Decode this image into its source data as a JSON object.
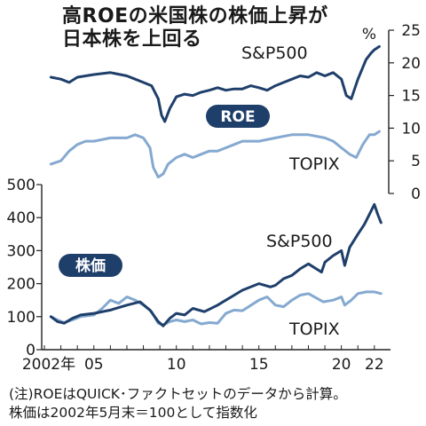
{
  "title": {
    "line1": "高ROEの米国株の株価上昇が",
    "line2": "日本株を上回る"
  },
  "colors": {
    "sp500": "#1f3f6b",
    "topix": "#85a9d0",
    "badge": "#1f3f6b",
    "axis": "#222222"
  },
  "notes": {
    "line1": "(注)ROEはQUICK･ファクトセットのデータから計算。",
    "line2": "株価は2002年5月末＝100として指数化"
  },
  "chart_data": [
    {
      "type": "line",
      "panel": "top",
      "badge": "ROE",
      "unit_label": "%",
      "y_axis_side": "right",
      "ylim": [
        0,
        25
      ],
      "y_ticks": [
        "0",
        "5",
        "10",
        "15",
        "20",
        "25"
      ],
      "series": [
        {
          "name": "S&P500",
          "x": [
            2002.4,
            2003.0,
            2003.5,
            2004.0,
            2005.0,
            2006.0,
            2007.0,
            2007.5,
            2008.0,
            2008.5,
            2008.9,
            2009.1,
            2009.3,
            2009.6,
            2010.0,
            2010.5,
            2011.0,
            2011.5,
            2012.0,
            2012.5,
            2013.0,
            2013.5,
            2014.0,
            2014.5,
            2015.0,
            2015.5,
            2016.0,
            2016.5,
            2017.0,
            2017.5,
            2018.0,
            2018.5,
            2019.0,
            2019.5,
            2020.0,
            2020.3,
            2020.6,
            2021.0,
            2021.5,
            2021.8,
            2022.0,
            2022.3
          ],
          "values": [
            17.8,
            17.5,
            17.0,
            17.8,
            18.2,
            18.5,
            18.0,
            17.5,
            17.0,
            16.5,
            14.5,
            12.0,
            11.0,
            13.0,
            14.8,
            15.2,
            15.0,
            15.5,
            15.8,
            16.2,
            15.8,
            16.0,
            16.0,
            16.5,
            16.2,
            15.8,
            16.5,
            17.0,
            17.5,
            18.0,
            17.8,
            18.5,
            18.0,
            18.5,
            17.5,
            15.0,
            14.5,
            17.5,
            20.5,
            21.5,
            22.0,
            22.5
          ]
        },
        {
          "name": "TOPIX",
          "x": [
            2002.4,
            2003.0,
            2003.5,
            2004.0,
            2004.5,
            2005.0,
            2006.0,
            2007.0,
            2007.5,
            2008.0,
            2008.4,
            2008.6,
            2008.9,
            2009.2,
            2009.5,
            2010.0,
            2010.5,
            2011.0,
            2011.5,
            2012.0,
            2012.5,
            2013.0,
            2013.5,
            2014.0,
            2015.0,
            2016.0,
            2017.0,
            2018.0,
            2019.0,
            2019.5,
            2020.0,
            2020.5,
            2020.9,
            2021.3,
            2021.7,
            2022.0,
            2022.3
          ],
          "values": [
            4.5,
            5.0,
            6.5,
            7.5,
            8.0,
            8.0,
            8.5,
            8.5,
            9.0,
            8.5,
            7.0,
            4.0,
            2.5,
            3.0,
            4.5,
            5.5,
            6.0,
            5.5,
            6.0,
            6.5,
            6.5,
            7.0,
            7.5,
            8.0,
            8.0,
            8.5,
            9.0,
            9.0,
            8.5,
            8.0,
            7.0,
            6.0,
            5.5,
            7.5,
            9.0,
            9.0,
            9.5
          ]
        }
      ]
    },
    {
      "type": "line",
      "panel": "bottom",
      "badge": "株価",
      "y_axis_side": "left",
      "ylim": [
        0,
        500
      ],
      "y_ticks": [
        "0",
        "100",
        "200",
        "300",
        "400",
        "500"
      ],
      "x_ticks": [
        "2002年",
        "05",
        "10",
        "15",
        "20",
        "22"
      ],
      "xlim": [
        2002.0,
        2022.6
      ],
      "series": [
        {
          "name": "S&P500",
          "x": [
            2002.4,
            2002.8,
            2003.2,
            2003.7,
            2004.2,
            2005.0,
            2006.0,
            2007.0,
            2007.8,
            2008.4,
            2008.9,
            2009.2,
            2009.6,
            2010.0,
            2010.5,
            2011.0,
            2011.7,
            2012.5,
            2013.0,
            2013.5,
            2014.0,
            2015.0,
            2015.7,
            2016.0,
            2016.5,
            2017.0,
            2017.5,
            2018.0,
            2018.8,
            2019.0,
            2019.5,
            2020.0,
            2020.2,
            2020.5,
            2021.0,
            2021.4,
            2021.8,
            2022.0,
            2022.2,
            2022.4
          ],
          "values": [
            100,
            85,
            80,
            95,
            105,
            110,
            120,
            135,
            145,
            120,
            85,
            72,
            95,
            110,
            105,
            125,
            115,
            135,
            150,
            165,
            180,
            200,
            190,
            195,
            215,
            225,
            245,
            260,
            235,
            265,
            285,
            300,
            255,
            310,
            350,
            380,
            420,
            440,
            410,
            385
          ]
        },
        {
          "name": "TOPIX",
          "x": [
            2002.4,
            2002.8,
            2003.2,
            2003.7,
            2004.2,
            2005.0,
            2005.5,
            2006.0,
            2006.5,
            2007.0,
            2007.5,
            2008.0,
            2008.5,
            2008.9,
            2009.2,
            2009.6,
            2010.0,
            2010.5,
            2011.0,
            2011.5,
            2012.0,
            2012.5,
            2013.0,
            2013.5,
            2014.0,
            2015.0,
            2015.5,
            2016.0,
            2016.5,
            2017.0,
            2017.5,
            2018.0,
            2018.9,
            2019.5,
            2020.0,
            2020.2,
            2020.6,
            2021.0,
            2021.5,
            2022.0,
            2022.4
          ],
          "values": [
            100,
            90,
            82,
            90,
            100,
            105,
            125,
            150,
            140,
            160,
            150,
            135,
            115,
            80,
            75,
            85,
            90,
            85,
            90,
            78,
            82,
            80,
            110,
            120,
            118,
            150,
            160,
            135,
            130,
            150,
            165,
            170,
            145,
            150,
            160,
            135,
            150,
            170,
            175,
            175,
            170
          ]
        }
      ]
    }
  ]
}
